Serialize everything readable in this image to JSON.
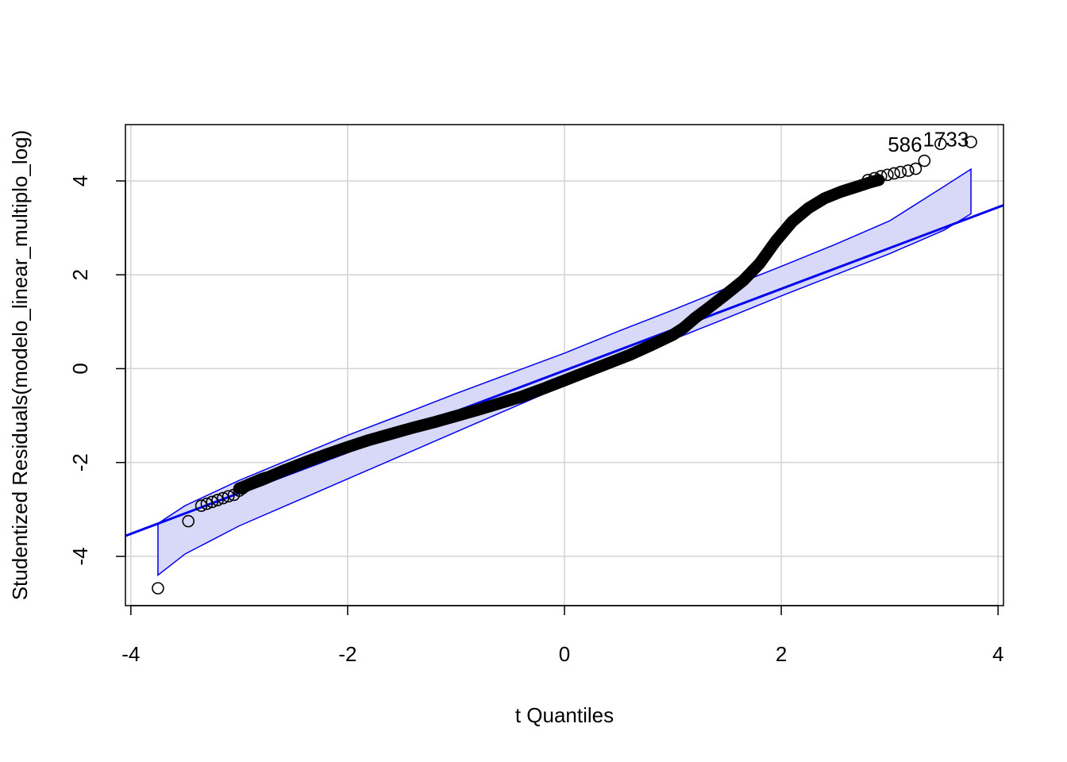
{
  "chart_data": {
    "type": "scatter",
    "title": "",
    "xlabel": "t Quantiles",
    "ylabel": "Studentized Residuals(modelo_linear_multiplo_log)",
    "xlim": [
      -4.05,
      4.05
    ],
    "ylim": [
      -5.05,
      5.2
    ],
    "x_ticks": [
      -4,
      -2,
      0,
      2,
      4
    ],
    "y_ticks": [
      -4,
      -2,
      0,
      2,
      4
    ],
    "grid": true,
    "colors": {
      "points": "#000000",
      "line": "#0000ee",
      "band_fill": "#d8d8f8",
      "band_edge": "#0000ee",
      "grid": "#d3d3d3"
    },
    "reference_line": {
      "slope": 0.87,
      "intercept": -0.04
    },
    "envelope": {
      "x": [
        -3.75,
        -3.5,
        -3.0,
        -2.5,
        -2.0,
        -1.5,
        -1.0,
        -0.5,
        0.0,
        0.5,
        1.0,
        1.5,
        2.0,
        2.5,
        3.0,
        3.5,
        3.75
      ],
      "lower": [
        -4.4,
        -3.95,
        -3.35,
        -2.85,
        -2.35,
        -1.85,
        -1.35,
        -0.85,
        -0.35,
        0.15,
        0.62,
        1.08,
        1.55,
        2.0,
        2.45,
        2.95,
        3.3
      ],
      "upper": [
        -3.3,
        -2.92,
        -2.38,
        -1.9,
        -1.42,
        -0.98,
        -0.53,
        -0.1,
        0.33,
        0.8,
        1.25,
        1.72,
        2.18,
        2.65,
        3.15,
        3.88,
        4.25
      ]
    },
    "curve": {
      "x": [
        -3.0,
        -2.8,
        -2.6,
        -2.4,
        -2.2,
        -2.0,
        -1.8,
        -1.6,
        -1.4,
        -1.2,
        -1.0,
        -0.8,
        -0.6,
        -0.4,
        -0.2,
        0.0,
        0.2,
        0.4,
        0.6,
        0.8,
        1.0,
        1.1,
        1.2,
        1.35,
        1.5,
        1.65,
        1.8,
        1.95,
        2.1,
        2.25,
        2.4,
        2.55,
        2.7,
        2.82,
        2.9
      ],
      "y": [
        -2.55,
        -2.38,
        -2.18,
        -2.0,
        -1.83,
        -1.67,
        -1.52,
        -1.39,
        -1.26,
        -1.14,
        -1.01,
        -0.88,
        -0.74,
        -0.6,
        -0.43,
        -0.25,
        -0.07,
        0.11,
        0.29,
        0.5,
        0.72,
        0.87,
        1.07,
        1.33,
        1.6,
        1.88,
        2.24,
        2.72,
        3.13,
        3.42,
        3.63,
        3.77,
        3.88,
        3.97,
        4.02
      ]
    },
    "points": {
      "x": [
        -3.75,
        -3.47,
        -3.35,
        -3.3,
        -3.25,
        -3.2,
        -3.15,
        -3.1,
        -3.05,
        -3.0,
        -2.97,
        -2.94,
        -2.91,
        -2.88,
        -2.85,
        -2.82,
        -2.79,
        -2.76,
        2.8,
        2.86,
        2.92,
        2.98,
        3.04,
        3.1,
        3.17,
        3.24,
        3.32,
        3.47,
        3.75
      ],
      "y": [
        -4.68,
        -3.25,
        -2.92,
        -2.88,
        -2.84,
        -2.8,
        -2.76,
        -2.72,
        -2.69,
        -2.6,
        -2.55,
        -2.5,
        -2.47,
        -2.44,
        -2.41,
        -2.38,
        -2.35,
        -2.33,
        4.02,
        4.06,
        4.1,
        4.13,
        4.16,
        4.19,
        4.22,
        4.26,
        4.43,
        4.79,
        4.83
      ]
    },
    "annotations": [
      {
        "text": "586",
        "x": 3.3,
        "y": 4.79
      },
      {
        "text": "1733",
        "x": 3.73,
        "y": 4.9
      }
    ]
  }
}
